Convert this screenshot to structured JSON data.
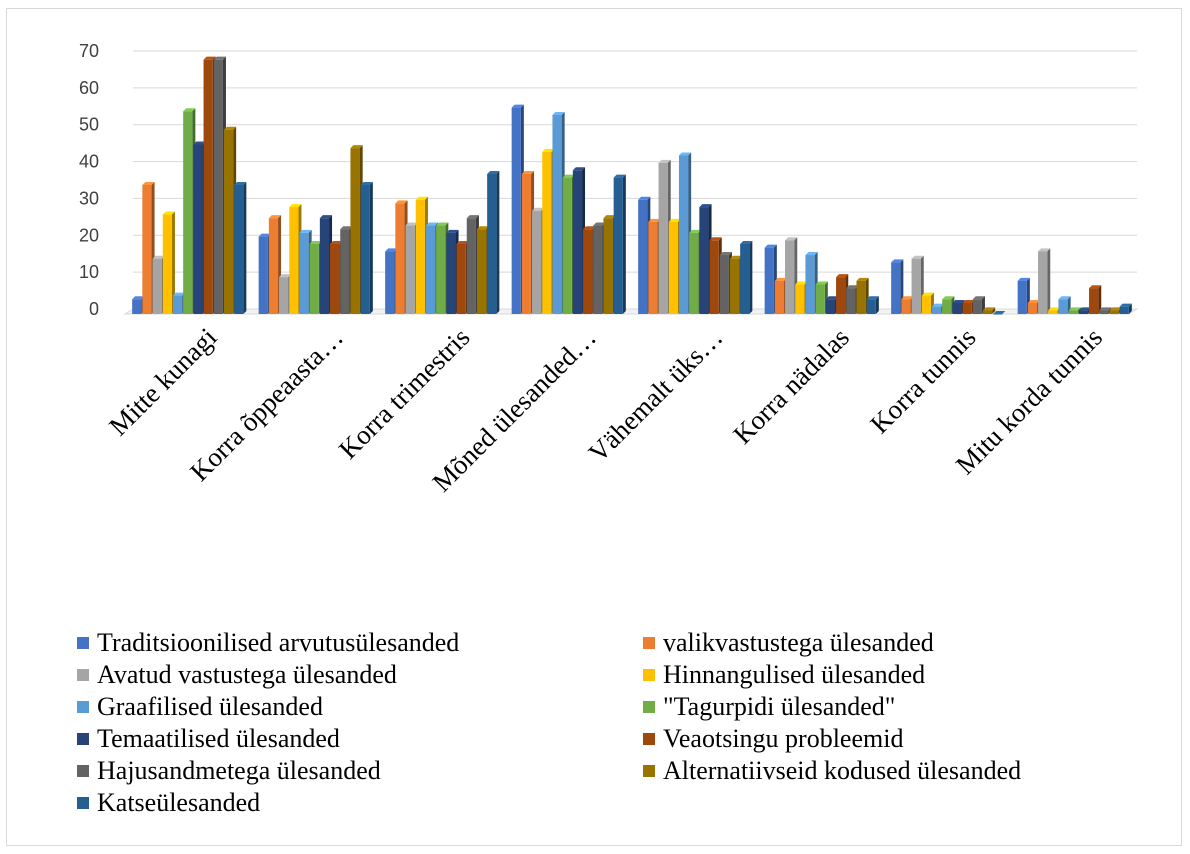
{
  "chart_data": {
    "type": "bar",
    "title": "",
    "xlabel": "",
    "ylabel": "",
    "ylim": [
      0,
      70
    ],
    "yticks": [
      0,
      10,
      20,
      30,
      40,
      50,
      60,
      70
    ],
    "grid": true,
    "legend_position": "bottom",
    "categories": [
      "Mitte kunagi",
      "Korra õppeaasta…",
      "Korra trimestris",
      "Mõned ülesanded…",
      "Vähemalt üks…",
      "Korra nädalas",
      "Korra tunnis",
      "Mitu korda tunnis"
    ],
    "series": [
      {
        "name": "Traditsioonilised arvutusülesanded",
        "color": "#4472c4",
        "values": [
          4,
          21,
          17,
          56,
          31,
          18,
          14,
          9
        ]
      },
      {
        "name": "valikvastustega ülesanded",
        "color": "#ed7d31",
        "values": [
          35,
          26,
          30,
          38,
          25,
          9,
          4,
          3
        ]
      },
      {
        "name": "Avatud vastustega ülesanded",
        "color": "#a5a5a5",
        "values": [
          15,
          10,
          24,
          28,
          41,
          20,
          15,
          17
        ]
      },
      {
        "name": "Hinnangulised ülesanded",
        "color": "#ffc000",
        "values": [
          27,
          29,
          31,
          44,
          25,
          8,
          5,
          1
        ]
      },
      {
        "name": "Graafilised ülesanded",
        "color": "#5b9bd5",
        "values": [
          5,
          22,
          24,
          54,
          43,
          16,
          2,
          4
        ]
      },
      {
        "name": "\"Tagurpidi ülesanded\"",
        "color": "#70ad47",
        "values": [
          55,
          19,
          24,
          37,
          22,
          8,
          4,
          1
        ]
      },
      {
        "name": "Temaatilised ülesanded",
        "color": "#264478",
        "values": [
          46,
          26,
          22,
          39,
          29,
          4,
          3,
          1
        ]
      },
      {
        "name": "Veaotsingu probleemid",
        "color": "#9e480e",
        "values": [
          69,
          19,
          19,
          23,
          20,
          10,
          3,
          7
        ]
      },
      {
        "name": "Hajusandmetega ülesanded",
        "color": "#636363",
        "values": [
          69,
          23,
          26,
          24,
          16,
          7,
          4,
          1
        ]
      },
      {
        "name": "Alternatiivseid kodused ülesanded",
        "color": "#997300",
        "values": [
          50,
          45,
          23,
          26,
          15,
          9,
          1,
          1
        ]
      },
      {
        "name": "Katseülesanded",
        "color": "#255e91",
        "values": [
          35,
          35,
          38,
          37,
          19,
          4,
          0,
          2
        ]
      }
    ]
  }
}
